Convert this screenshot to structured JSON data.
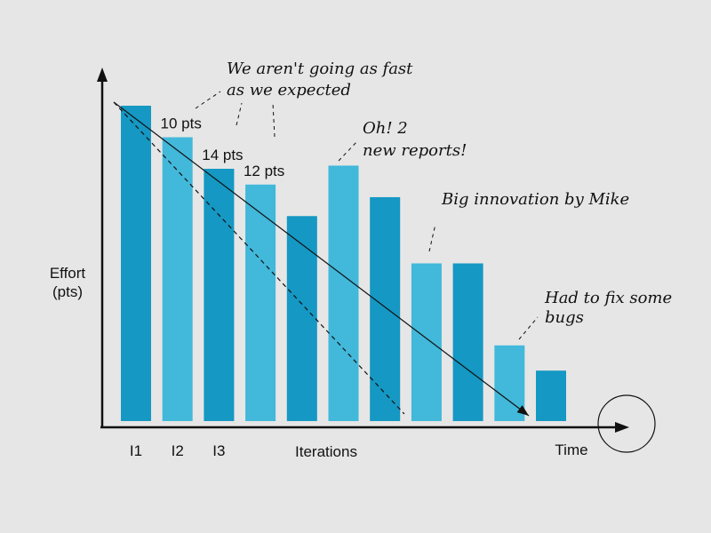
{
  "chart_data": {
    "type": "bar",
    "title": "",
    "xlabel": "Iterations",
    "ylabel_lines": [
      "Effort",
      "(pts)"
    ],
    "x_end_label": "Time",
    "categories": [
      "I1",
      "I2",
      "I3",
      "",
      "",
      "",
      "",
      "",
      "",
      "",
      ""
    ],
    "values": [
      100,
      90,
      80,
      75,
      65,
      81,
      71,
      50,
      50,
      24,
      16
    ],
    "bar_colors": [
      "#1598c3",
      "#42b8da",
      "#1598c3",
      "#42b8da",
      "#1598c3",
      "#42b8da",
      "#1598c3",
      "#42b8da",
      "#1598c3",
      "#42b8da",
      "#1598c3"
    ],
    "bar_labels": [
      {
        "index": 1,
        "text": "10 pts"
      },
      {
        "index": 2,
        "text": "14 pts"
      },
      {
        "index": 3,
        "text": "12 pts"
      }
    ],
    "ylim": [
      0,
      100
    ],
    "grid": false,
    "ideal_trend": {
      "from": [
        0,
        100
      ],
      "to": [
        7,
        0
      ]
    },
    "actual_trend": {
      "from": [
        0,
        100
      ],
      "to": [
        10,
        0
      ]
    },
    "annotations": [
      {
        "lines": [
          "We aren't going as fast",
          "as we expected"
        ]
      },
      {
        "lines": [
          "Oh! 2",
          "new reports!"
        ]
      },
      {
        "lines": [
          "Big innovation by Mike"
        ]
      },
      {
        "lines": [
          "Had to fix some",
          "bugs"
        ]
      }
    ]
  }
}
